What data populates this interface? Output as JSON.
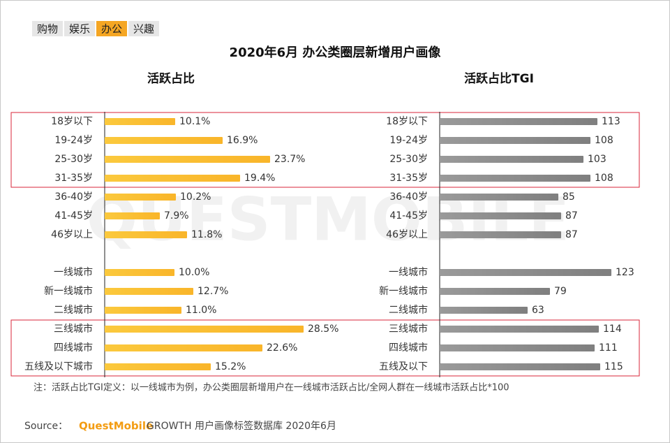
{
  "tabs": [
    "购物",
    "娱乐",
    "办公",
    "兴趣"
  ],
  "active_tab": 2,
  "title": "2020年6月 办公类圈层新增用户画像",
  "watermark": "QUESTMOBILE",
  "chart_data": [
    {
      "type": "bar",
      "orientation": "horizontal",
      "title": "活跃占比",
      "categories": [
        "18岁以下",
        "19-24岁",
        "25-30岁",
        "31-35岁",
        "36-40岁",
        "41-45岁",
        "46岁以上",
        "一线城市",
        "新一线城市",
        "二线城市",
        "三线城市",
        "四线城市",
        "五线及以下城市"
      ],
      "values": [
        10.1,
        16.9,
        23.7,
        19.4,
        10.2,
        7.9,
        11.8,
        10.0,
        12.7,
        11.0,
        28.5,
        22.6,
        15.2
      ],
      "value_labels": [
        "10.1%",
        "16.9%",
        "23.7%",
        "19.4%",
        "10.2%",
        "7.9%",
        "11.8%",
        "10.0%",
        "12.7%",
        "11.0%",
        "28.5%",
        "22.6%",
        "15.2%"
      ],
      "color": "#f9b52a",
      "xlim": [
        0,
        30
      ]
    },
    {
      "type": "bar",
      "orientation": "horizontal",
      "title": "活跃占比TGI",
      "categories": [
        "18岁以下",
        "19-24岁",
        "25-30岁",
        "31-35岁",
        "36-40岁",
        "41-45岁",
        "46岁以上",
        "一线城市",
        "新一线城市",
        "二线城市",
        "三线城市",
        "四线城市",
        "五线及以下"
      ],
      "values": [
        113,
        108,
        103,
        108,
        85,
        87,
        87,
        123,
        79,
        63,
        114,
        111,
        115
      ],
      "color": "#7f7f7f",
      "xlim": [
        0,
        150
      ]
    }
  ],
  "note": "注：活跃占比TGI定义：以一线城市为例，办公类圈层新增用户在一线城市活跃占比/全网人群在一线城市活跃占比*100",
  "source": {
    "label": "Source：",
    "brand": "QuestMobile",
    "text": "GROWTH 用户画像标签数据库 2020年6月"
  }
}
